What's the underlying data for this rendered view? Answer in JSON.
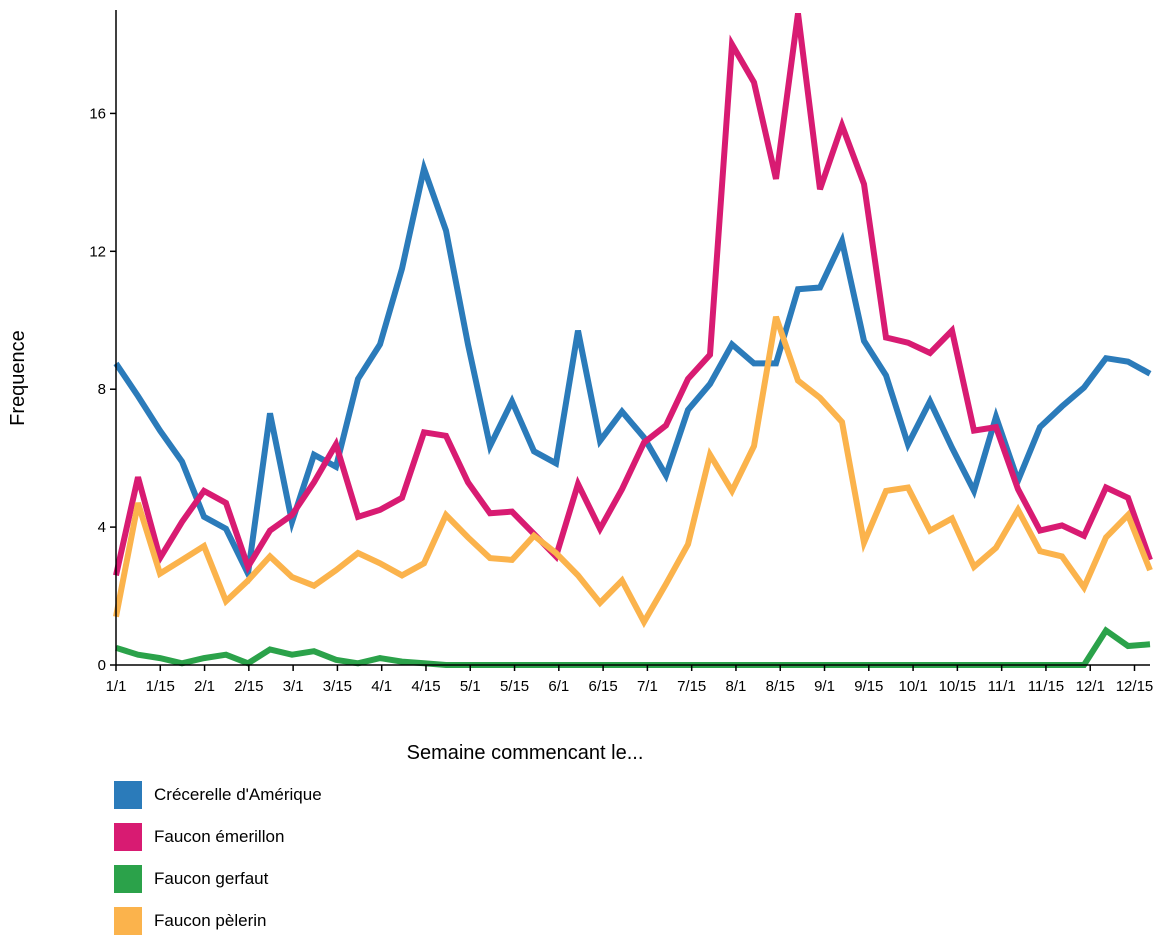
{
  "chart_data": {
    "type": "line",
    "xlabel": "Semaine commencant le...",
    "ylabel": "Frequence",
    "ylim": [
      0,
      19
    ],
    "yticks": [
      0,
      4,
      8,
      12,
      16
    ],
    "xticks": [
      "1/1",
      "1/15",
      "2/1",
      "2/15",
      "3/1",
      "3/15",
      "4/1",
      "4/15",
      "5/1",
      "5/15",
      "6/1",
      "6/15",
      "7/1",
      "7/15",
      "8/1",
      "8/15",
      "9/1",
      "9/15",
      "10/1",
      "10/15",
      "11/1",
      "11/15",
      "12/1",
      "12/15"
    ],
    "grid": false,
    "legend_position": "bottom-left",
    "series": [
      {
        "name": "Crécerelle d'Amérique",
        "color": "#2b7bba",
        "values": [
          8.75,
          7.8,
          6.8,
          5.9,
          4.3,
          3.95,
          2.65,
          7.3,
          4.15,
          6.1,
          5.75,
          8.3,
          9.3,
          11.5,
          14.4,
          12.6,
          9.3,
          6.35,
          7.65,
          6.2,
          5.85,
          9.7,
          6.5,
          7.35,
          6.6,
          5.5,
          7.4,
          8.15,
          9.3,
          8.75,
          8.75,
          10.9,
          10.95,
          12.3,
          9.4,
          8.4,
          6.4,
          7.65,
          6.3,
          5.05,
          7.2,
          5.35,
          6.9,
          7.5,
          8.05,
          8.9,
          8.8,
          8.45
        ]
      },
      {
        "name": "Faucon émerillon",
        "color": "#d81b72",
        "values": [
          2.6,
          5.45,
          3.1,
          4.15,
          5.05,
          4.7,
          2.85,
          3.9,
          4.35,
          5.3,
          6.4,
          4.3,
          4.5,
          4.85,
          6.75,
          6.65,
          5.3,
          4.4,
          4.45,
          3.8,
          3.15,
          5.25,
          3.95,
          5.1,
          6.45,
          6.95,
          8.3,
          9.0,
          18.0,
          16.9,
          14.1,
          18.9,
          13.8,
          15.65,
          13.95,
          9.5,
          9.35,
          9.05,
          9.7,
          6.8,
          6.9,
          5.1,
          3.9,
          4.05,
          3.75,
          5.15,
          4.85,
          3.05
        ]
      },
      {
        "name": "Faucon gerfaut",
        "color": "#2ba24a",
        "values": [
          0.5,
          0.3,
          0.2,
          0.05,
          0.2,
          0.3,
          0.05,
          0.45,
          0.3,
          0.4,
          0.15,
          0.05,
          0.2,
          0.1,
          0.05,
          0,
          0,
          0,
          0,
          0,
          0,
          0,
          0,
          0,
          0,
          0,
          0,
          0,
          0,
          0,
          0,
          0,
          0,
          0,
          0,
          0,
          0,
          0,
          0,
          0,
          0,
          0,
          0,
          0,
          0,
          1.0,
          0.55,
          0.6
        ]
      },
      {
        "name": "Faucon pèlerin",
        "color": "#fbb34c",
        "values": [
          1.4,
          4.7,
          2.65,
          3.05,
          3.45,
          1.85,
          2.45,
          3.15,
          2.55,
          2.3,
          2.75,
          3.25,
          2.95,
          2.6,
          2.95,
          4.35,
          3.7,
          3.1,
          3.05,
          3.75,
          3.25,
          2.6,
          1.8,
          2.45,
          1.25,
          2.35,
          3.5,
          6.1,
          5.05,
          6.35,
          10.1,
          8.25,
          7.75,
          7.05,
          3.55,
          5.05,
          5.15,
          3.9,
          4.25,
          2.85,
          3.4,
          4.5,
          3.3,
          3.15,
          2.25,
          3.7,
          4.35,
          2.75
        ]
      }
    ]
  }
}
